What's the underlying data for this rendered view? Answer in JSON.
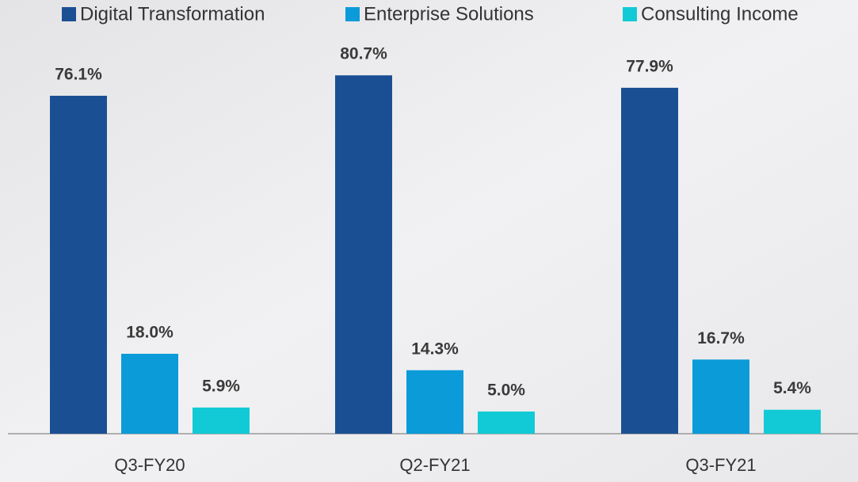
{
  "chart_data": {
    "type": "bar",
    "categories": [
      "Q3-FY20",
      "Q2-FY21",
      "Q3-FY21"
    ],
    "series": [
      {
        "name": "Digital Transformation",
        "color": "#1b4f93",
        "values": [
          76.1,
          80.7,
          77.9
        ],
        "value_labels": [
          "76.1%",
          "80.7%",
          "77.9%"
        ]
      },
      {
        "name": "Enterprise Solutions",
        "color": "#0a9bd8",
        "values": [
          18.0,
          14.3,
          16.7
        ],
        "value_labels": [
          "18.0%",
          "14.3%",
          "16.7%"
        ]
      },
      {
        "name": "Consulting Income",
        "color": "#12cad6",
        "values": [
          5.9,
          5.0,
          5.4
        ],
        "value_labels": [
          "5.9%",
          "5.0%",
          "5.4%"
        ]
      }
    ],
    "ylim": [
      0,
      90
    ],
    "legend": "top"
  }
}
